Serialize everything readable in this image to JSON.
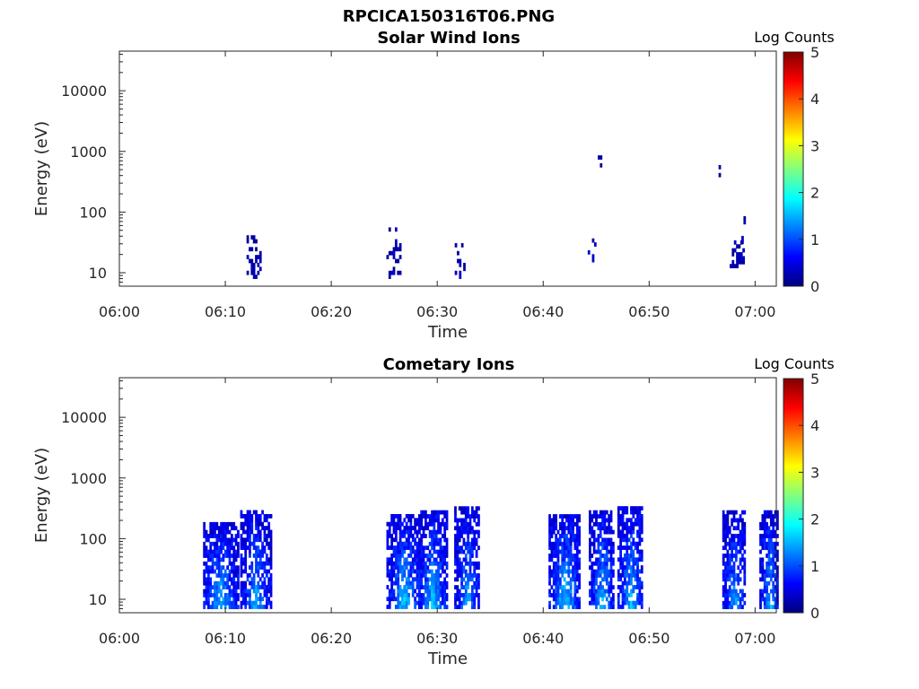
{
  "figure_title": "RPCICA150316T06.PNG",
  "colors": {
    "axis": "#262626",
    "background": "#ffffff",
    "colormap": [
      "#000080",
      "#0000ff",
      "#0080ff",
      "#00ffff",
      "#80ff80",
      "#ffff00",
      "#ff8000",
      "#ff0000",
      "#800000"
    ]
  },
  "chart_data": [
    {
      "type": "heatmap",
      "title": "Solar Wind Ions",
      "xlabel": "Time",
      "ylabel": "Energy (eV)",
      "yscale": "log",
      "xlim": [
        "06:00",
        "07:02"
      ],
      "ylim": [
        6,
        45000
      ],
      "x_ticks": [
        "06:00",
        "06:10",
        "06:20",
        "06:30",
        "06:40",
        "06:50",
        "07:00"
      ],
      "y_ticks": [
        "10",
        "100",
        "1000",
        "10000"
      ],
      "colorbar": {
        "label": "Log Counts",
        "range": [
          0,
          5
        ],
        "ticks": [
          "0",
          "1",
          "2",
          "3",
          "4",
          "5"
        ]
      },
      "clusters": [
        {
          "t": 12.6,
          "w": 1.2,
          "emin": 8,
          "emax": 40,
          "level": 0.2,
          "density": 0.55
        },
        {
          "t": 25.8,
          "w": 1.2,
          "emin": 8,
          "emax": 50,
          "level": 0.2,
          "density": 0.45
        },
        {
          "t": 32.1,
          "w": 0.9,
          "emin": 8,
          "emax": 30,
          "level": 0.2,
          "density": 0.55
        },
        {
          "t": 44.7,
          "w": 1.0,
          "emin": 15,
          "emax": 35,
          "level": 0.2,
          "density": 0.4
        },
        {
          "t": 45.3,
          "w": 0.3,
          "emin": 550,
          "emax": 800,
          "level": 0.2,
          "density": 0.7
        },
        {
          "t": 56.5,
          "w": 0.3,
          "emin": 380,
          "emax": 520,
          "level": 0.2,
          "density": 0.9
        },
        {
          "t": 58.3,
          "w": 1.4,
          "emin": 12,
          "emax": 30,
          "level": 0.25,
          "density": 0.6
        },
        {
          "t": 58.9,
          "w": 0.4,
          "emin": 30,
          "emax": 75,
          "level": 0.2,
          "density": 0.4
        }
      ]
    },
    {
      "type": "heatmap",
      "title": "Cometary Ions",
      "xlabel": "Time",
      "ylabel": "Energy (eV)",
      "yscale": "log",
      "xlim": [
        "06:00",
        "07:02"
      ],
      "ylim": [
        6,
        45000
      ],
      "x_ticks": [
        "06:00",
        "06:10",
        "06:20",
        "06:30",
        "06:40",
        "06:50",
        "07:00"
      ],
      "y_ticks": [
        "10",
        "100",
        "1000",
        "10000"
      ],
      "colorbar": {
        "label": "Log Counts",
        "range": [
          0,
          5
        ],
        "ticks": [
          "0",
          "1",
          "2",
          "3",
          "4",
          "5"
        ]
      },
      "clusters": [
        {
          "t": 9.5,
          "w": 3.2,
          "emin": 6,
          "emax": 170,
          "level": 1.3,
          "density": 0.75
        },
        {
          "t": 12.8,
          "w": 2.8,
          "emin": 7,
          "emax": 280,
          "level": 1.2,
          "density": 0.7
        },
        {
          "t": 26.8,
          "w": 3.2,
          "emin": 7,
          "emax": 220,
          "level": 1.3,
          "density": 0.75
        },
        {
          "t": 29.5,
          "w": 2.6,
          "emin": 6,
          "emax": 260,
          "level": 1.35,
          "density": 0.75
        },
        {
          "t": 32.8,
          "w": 2.4,
          "emin": 6,
          "emax": 320,
          "level": 1.2,
          "density": 0.72
        },
        {
          "t": 42.0,
          "w": 3.0,
          "emin": 6,
          "emax": 220,
          "level": 1.4,
          "density": 0.75
        },
        {
          "t": 45.5,
          "w": 2.4,
          "emin": 6,
          "emax": 280,
          "level": 1.3,
          "density": 0.72
        },
        {
          "t": 48.2,
          "w": 2.4,
          "emin": 7,
          "emax": 320,
          "level": 1.3,
          "density": 0.72
        },
        {
          "t": 58.0,
          "w": 2.2,
          "emin": 6,
          "emax": 260,
          "level": 1.2,
          "density": 0.7
        },
        {
          "t": 61.3,
          "w": 1.8,
          "emin": 6,
          "emax": 260,
          "level": 1.25,
          "density": 0.72
        }
      ]
    }
  ]
}
